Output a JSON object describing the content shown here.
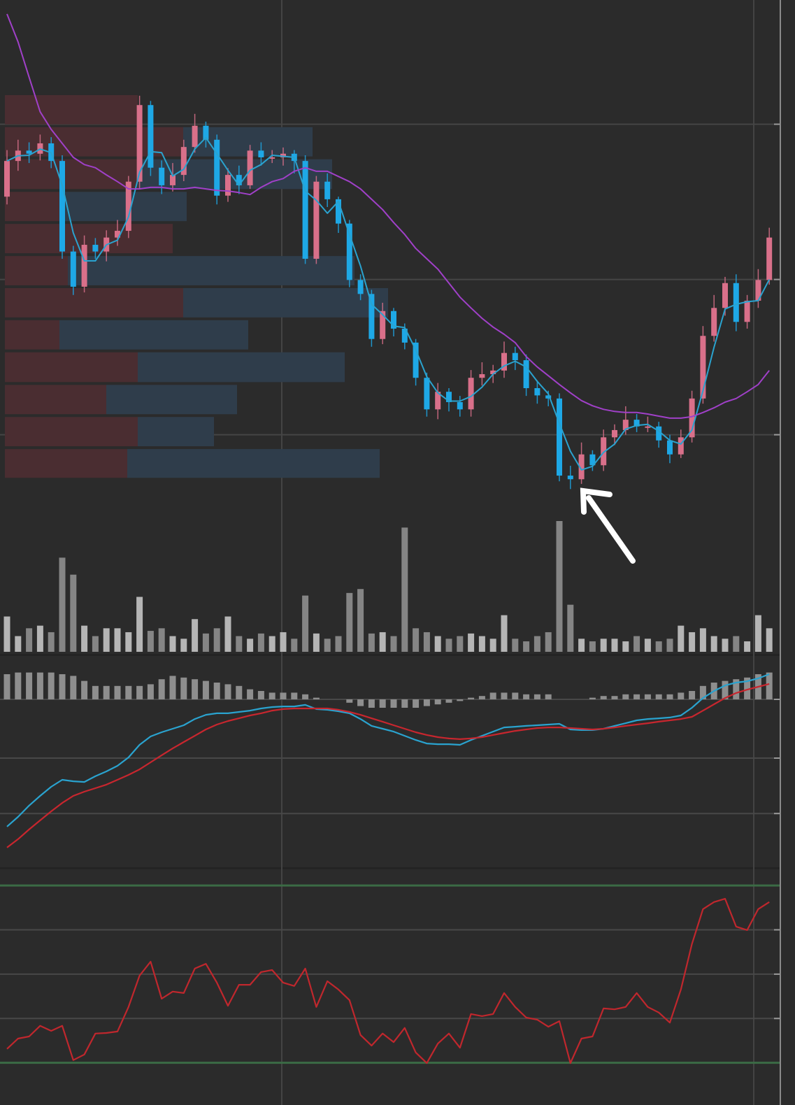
{
  "chart_data": [
    {
      "type": "candlestick",
      "ylim": [
        0,
        100
      ],
      "yticks": [
        76,
        46,
        16
      ],
      "grid": true,
      "up_color": "#d9708a",
      "down_color": "#1ea8e6",
      "open": [
        62.0,
        68.9,
        70.9,
        70.3,
        72.3,
        68.9,
        51.4,
        44.6,
        52.7,
        51.4,
        54.1,
        55.4,
        64.9,
        79.7,
        67.6,
        64.2,
        66.2,
        71.6,
        75.7,
        73.0,
        62.2,
        66.2,
        64.2,
        70.9,
        69.6,
        69.6,
        70.3,
        68.9,
        50.0,
        64.9,
        61.5,
        56.8,
        45.9,
        43.2,
        34.5,
        39.9,
        36.5,
        33.8,
        27.0,
        20.9,
        24.3,
        22.3,
        20.9,
        27.0,
        27.7,
        28.4,
        31.8,
        30.4,
        25.0,
        23.6,
        23.0,
        8.1,
        7.4,
        12.2,
        10.1,
        15.5,
        16.9,
        18.9,
        17.6,
        17.6,
        14.9,
        12.2,
        15.5,
        23.0,
        35.1,
        40.5,
        45.3,
        37.8,
        41.9,
        45.9
      ],
      "high": [
        71.0,
        73.0,
        72.5,
        74.0,
        73.5,
        70.0,
        52.5,
        54.5,
        54.0,
        55.5,
        57.5,
        66.0,
        81.5,
        80.5,
        69.0,
        68.5,
        73.0,
        78.0,
        76.5,
        74.0,
        67.5,
        68.0,
        72.0,
        72.5,
        71.0,
        71.5,
        71.0,
        70.0,
        66.0,
        66.5,
        62.0,
        57.5,
        47.0,
        44.0,
        41.5,
        40.5,
        37.5,
        34.5,
        28.0,
        26.0,
        25.0,
        23.5,
        28.5,
        30.0,
        29.5,
        34.0,
        33.0,
        31.5,
        26.5,
        24.5,
        24.0,
        10.0,
        14.5,
        13.0,
        17.0,
        18.0,
        21.5,
        20.0,
        19.5,
        18.5,
        16.0,
        17.0,
        24.5,
        37.0,
        43.0,
        46.5,
        47.0,
        43.0,
        48.0,
        56.0
      ],
      "low": [
        60.5,
        67.0,
        68.5,
        69.0,
        67.5,
        50.0,
        43.0,
        43.5,
        50.0,
        49.5,
        52.5,
        54.0,
        63.5,
        66.0,
        62.5,
        63.0,
        65.0,
        70.5,
        71.5,
        60.5,
        61.0,
        62.5,
        63.5,
        68.0,
        68.5,
        68.0,
        66.5,
        49.0,
        49.0,
        60.0,
        55.0,
        44.5,
        42.0,
        33.0,
        33.5,
        35.0,
        32.5,
        25.5,
        19.5,
        19.0,
        20.5,
        19.5,
        19.5,
        25.5,
        26.0,
        27.0,
        28.5,
        23.5,
        22.0,
        21.5,
        7.0,
        5.5,
        6.5,
        9.0,
        9.0,
        14.0,
        16.0,
        16.5,
        16.5,
        13.5,
        10.5,
        11.5,
        14.5,
        22.0,
        34.0,
        39.0,
        36.0,
        36.5,
        40.5,
        45.0
      ],
      "close": [
        68.9,
        70.9,
        70.3,
        72.3,
        68.9,
        51.4,
        44.6,
        52.7,
        51.4,
        54.1,
        55.4,
        64.9,
        79.7,
        67.6,
        64.2,
        66.2,
        71.6,
        75.7,
        73.0,
        62.2,
        66.2,
        64.2,
        70.9,
        69.6,
        69.6,
        70.3,
        68.9,
        50.0,
        64.9,
        61.5,
        56.8,
        45.9,
        43.2,
        34.5,
        39.9,
        36.5,
        33.8,
        27.0,
        20.9,
        24.3,
        22.3,
        20.9,
        27.0,
        27.7,
        28.4,
        31.8,
        30.4,
        25.0,
        23.6,
        23.0,
        8.1,
        7.4,
        12.2,
        10.1,
        15.5,
        16.9,
        18.9,
        17.6,
        17.6,
        14.9,
        12.2,
        15.5,
        23.0,
        35.1,
        40.5,
        45.3,
        37.8,
        41.9,
        45.9,
        54.1
      ],
      "lines": [
        {
          "color": "#2aa3cf",
          "values": [
            68.9,
            69.9,
            70.0,
            71.2,
            70.5,
            64.2,
            55.0,
            49.6,
            49.6,
            52.7,
            53.6,
            58.1,
            66.7,
            70.7,
            70.5,
            66.0,
            67.3,
            71.2,
            73.4,
            70.3,
            67.1,
            64.2,
            67.1,
            68.2,
            70.0,
            69.8,
            69.6,
            63.1,
            61.3,
            58.8,
            61.1,
            54.7,
            48.6,
            41.2,
            39.2,
            37.0,
            36.7,
            32.4,
            27.2,
            24.1,
            22.5,
            22.5,
            23.4,
            25.2,
            27.7,
            29.3,
            30.2,
            29.1,
            26.3,
            23.9,
            18.2,
            12.8,
            9.2,
            9.9,
            12.6,
            14.2,
            17.1,
            17.8,
            18.0,
            16.7,
            14.9,
            14.2,
            16.9,
            24.5,
            32.9,
            40.3,
            41.2,
            41.7,
            41.9,
            46.0
          ]
        },
        {
          "color": "#a040c8",
          "values": [
            97.3,
            91.9,
            85.1,
            78.4,
            75.0,
            72.3,
            69.6,
            68.2,
            67.6,
            66.2,
            64.9,
            63.5,
            63.5,
            63.8,
            63.8,
            63.5,
            63.5,
            63.8,
            63.5,
            63.2,
            63.1,
            62.8,
            62.4,
            63.8,
            64.9,
            65.5,
            66.9,
            67.6,
            66.9,
            66.9,
            65.9,
            64.9,
            63.5,
            61.5,
            59.5,
            57.0,
            54.7,
            52.0,
            50.0,
            48.0,
            45.3,
            42.6,
            40.5,
            38.5,
            36.8,
            35.4,
            33.8,
            31.1,
            29.1,
            27.4,
            25.7,
            24.1,
            22.6,
            21.6,
            20.9,
            20.5,
            20.3,
            20.3,
            20.0,
            19.6,
            19.2,
            19.2,
            19.5,
            20.3,
            21.2,
            22.3,
            23.0,
            24.3,
            25.7,
            28.4
          ]
        }
      ],
      "profile": {
        "xlim": [
          0,
          1100
        ],
        "bins": [
          7.4,
          13.5,
          19.7,
          25.9,
          32.2,
          38.4,
          44.6,
          50.8,
          57.0,
          63.2,
          69.5,
          75.7,
          81.9
        ],
        "series": [
          {
            "color": "#4a2d31",
            "values": [
              175,
              190,
              145,
              190,
              78,
              255,
              90,
              240,
              85,
              190,
              255,
              190
            ]
          },
          {
            "color": "#2f3d4b",
            "values": [
              361,
              109,
              187,
              296,
              270,
              293,
              410,
              0,
              175,
              278,
              185,
              0
            ]
          }
        ]
      }
    },
    {
      "type": "bar",
      "ylim": [
        0,
        100
      ],
      "up_color": "#b5b5b5",
      "down_color": "#858585",
      "values": [
        27,
        12,
        18,
        20,
        15,
        72,
        59,
        20,
        12,
        18,
        18,
        15,
        42,
        16,
        18,
        12,
        10,
        25,
        14,
        18,
        27,
        12,
        10,
        14,
        12,
        15,
        10,
        43,
        14,
        10,
        12,
        45,
        48,
        14,
        15,
        12,
        95,
        18,
        15,
        12,
        10,
        12,
        14,
        12,
        10,
        28,
        10,
        8,
        12,
        15,
        100,
        36,
        10,
        8,
        10,
        10,
        8,
        12,
        10,
        8,
        10,
        20,
        15,
        18,
        12,
        10,
        12,
        8,
        28,
        18
      ]
    },
    {
      "type": "macd",
      "ylim": [
        -100,
        25
      ],
      "yticks": [
        -68,
        -35,
        0
      ],
      "grid": true,
      "histogram_color": "#8e8e8e",
      "histogram": [
        15,
        16,
        16,
        16,
        16,
        15,
        14,
        11,
        8,
        8,
        8,
        8,
        8,
        9,
        12,
        14,
        13,
        12,
        11,
        10,
        9,
        8,
        6,
        5,
        4,
        4,
        4,
        3,
        1,
        0,
        0,
        -2,
        -4,
        -5,
        -5,
        -5,
        -5,
        -5,
        -4,
        -3,
        -2,
        -1,
        1,
        2,
        4,
        4,
        4,
        3,
        3,
        3,
        0,
        0,
        0,
        1,
        2,
        2,
        3,
        3,
        3,
        3,
        3,
        4,
        5,
        8,
        10,
        11,
        12,
        13,
        15,
        16
      ],
      "series": [
        {
          "color": "#2aa3cf",
          "values": [
            -75.8,
            -70.0,
            -63.3,
            -57.5,
            -52.1,
            -47.9,
            -48.8,
            -49.2,
            -45.8,
            -42.9,
            -39.6,
            -34.6,
            -27.1,
            -22.1,
            -19.6,
            -17.5,
            -15.4,
            -11.7,
            -9.2,
            -8.3,
            -8.3,
            -7.5,
            -6.7,
            -5.4,
            -4.6,
            -4.2,
            -4.2,
            -3.3,
            -5.8,
            -6.2,
            -7.1,
            -8.3,
            -11.7,
            -15.8,
            -17.5,
            -19.2,
            -21.7,
            -24.2,
            -26.3,
            -26.7,
            -26.7,
            -27.1,
            -24.2,
            -21.7,
            -19.2,
            -16.7,
            -16.3,
            -15.8,
            -15.4,
            -15.0,
            -14.6,
            -17.9,
            -18.3,
            -18.3,
            -17.5,
            -15.8,
            -14.2,
            -12.5,
            -11.7,
            -11.3,
            -10.8,
            -9.6,
            -5.0,
            0.8,
            5.0,
            8.3,
            10.0,
            10.8,
            12.5,
            15.0
          ]
        },
        {
          "color": "#c8262e",
          "values": [
            -88.3,
            -83.3,
            -77.5,
            -72.1,
            -66.7,
            -61.7,
            -57.5,
            -55.0,
            -52.9,
            -50.8,
            -47.9,
            -45.0,
            -41.7,
            -37.5,
            -33.3,
            -29.2,
            -25.4,
            -21.7,
            -17.9,
            -15.0,
            -12.9,
            -11.3,
            -9.6,
            -8.3,
            -6.7,
            -5.8,
            -5.4,
            -5.4,
            -5.4,
            -5.4,
            -6.2,
            -7.5,
            -9.2,
            -11.3,
            -13.3,
            -15.4,
            -17.5,
            -19.6,
            -21.2,
            -22.5,
            -23.3,
            -23.7,
            -23.3,
            -22.5,
            -21.2,
            -20.0,
            -18.8,
            -17.9,
            -17.1,
            -16.7,
            -16.7,
            -17.1,
            -17.5,
            -17.9,
            -17.5,
            -16.7,
            -15.8,
            -15.0,
            -14.2,
            -13.3,
            -12.5,
            -11.7,
            -10.4,
            -6.7,
            -2.9,
            0.8,
            3.8,
            5.8,
            7.5,
            9.2
          ]
        }
      ]
    },
    {
      "type": "line",
      "ylim": [
        14,
        85
      ],
      "yticks": [
        35,
        50,
        65
      ],
      "grid": true,
      "bands": [
        20,
        80
      ],
      "band_color": "#3b6b45",
      "color": "#c0272d",
      "values": [
        24.7,
        28.2,
        28.9,
        32.5,
        30.8,
        32.5,
        20.9,
        22.8,
        29.9,
        30.1,
        30.6,
        38.9,
        49.5,
        54.2,
        41.7,
        44.1,
        43.6,
        51.9,
        53.5,
        47.1,
        39.3,
        46.4,
        46.4,
        50.7,
        51.4,
        47.1,
        46.0,
        51.9,
        38.9,
        47.6,
        44.8,
        41.2,
        29.4,
        25.8,
        29.9,
        27.0,
        31.8,
        23.5,
        19.9,
        26.5,
        29.9,
        25.1,
        36.5,
        35.8,
        36.5,
        43.6,
        38.9,
        35.3,
        34.6,
        32.2,
        34.1,
        19.9,
        28.2,
        28.9,
        38.4,
        38.1,
        38.9,
        43.6,
        38.9,
        37.0,
        33.6,
        44.8,
        60.2,
        72.0,
        74.4,
        75.5,
        66.1,
        64.9,
        72.0,
        74.4
      ]
    }
  ]
}
